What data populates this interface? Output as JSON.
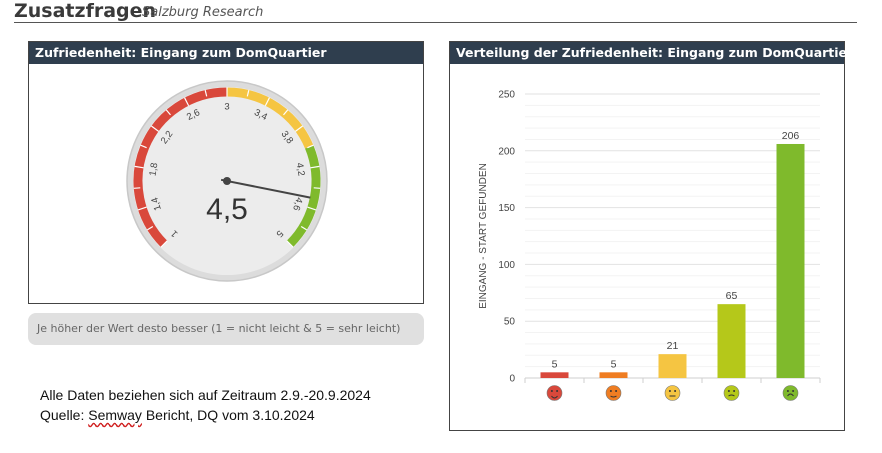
{
  "header": {
    "title": "Zusatzfragen",
    "subtitle": "Salzburg Research"
  },
  "gauge_panel": {
    "title": "Zufriedenheit: Eingang zum DomQuartier",
    "value": 4.5,
    "value_label": "4,5",
    "min": 1,
    "max": 5,
    "ticks": [
      "1",
      "1,4",
      "1,8",
      "2,2",
      "2,6",
      "3",
      "3,4",
      "3,8",
      "4,2",
      "4,6",
      "5"
    ],
    "bands": [
      {
        "from": 1,
        "to": 3,
        "color": "#d9483b"
      },
      {
        "from": 3,
        "to": 4,
        "color": "#f5c542"
      },
      {
        "from": 4,
        "to": 5,
        "color": "#7fba2c"
      }
    ]
  },
  "note": "Je höher der Wert desto besser (1 = nicht leicht & 5 = sehr leicht)",
  "footer": {
    "line1": "Alle Daten beziehen sich auf Zeitraum 2.9.-20.9.2024",
    "line2_prefix": "Quelle: ",
    "line2_word": "Semway",
    "line2_rest": " Bericht, DQ vom 3.10.2024"
  },
  "dist_panel": {
    "title": "Verteilung der Zufriedenheit: Eingang zum DomQuartier"
  },
  "chart_data": {
    "type": "bar",
    "categories": [
      "very-unhappy",
      "unhappy",
      "neutral",
      "happy",
      "very-happy"
    ],
    "values": [
      5,
      5,
      21,
      65,
      206
    ],
    "colors": [
      "#d9483b",
      "#ef7d22",
      "#f5c542",
      "#b5c81a",
      "#7fba2c"
    ],
    "xlabel": "",
    "ylabel": "EINGANG - START GEFUNDEN",
    "ylim": [
      0,
      250
    ],
    "yticks": [
      0,
      50,
      100,
      150,
      200,
      250
    ],
    "grid": true,
    "data_labels": true
  }
}
